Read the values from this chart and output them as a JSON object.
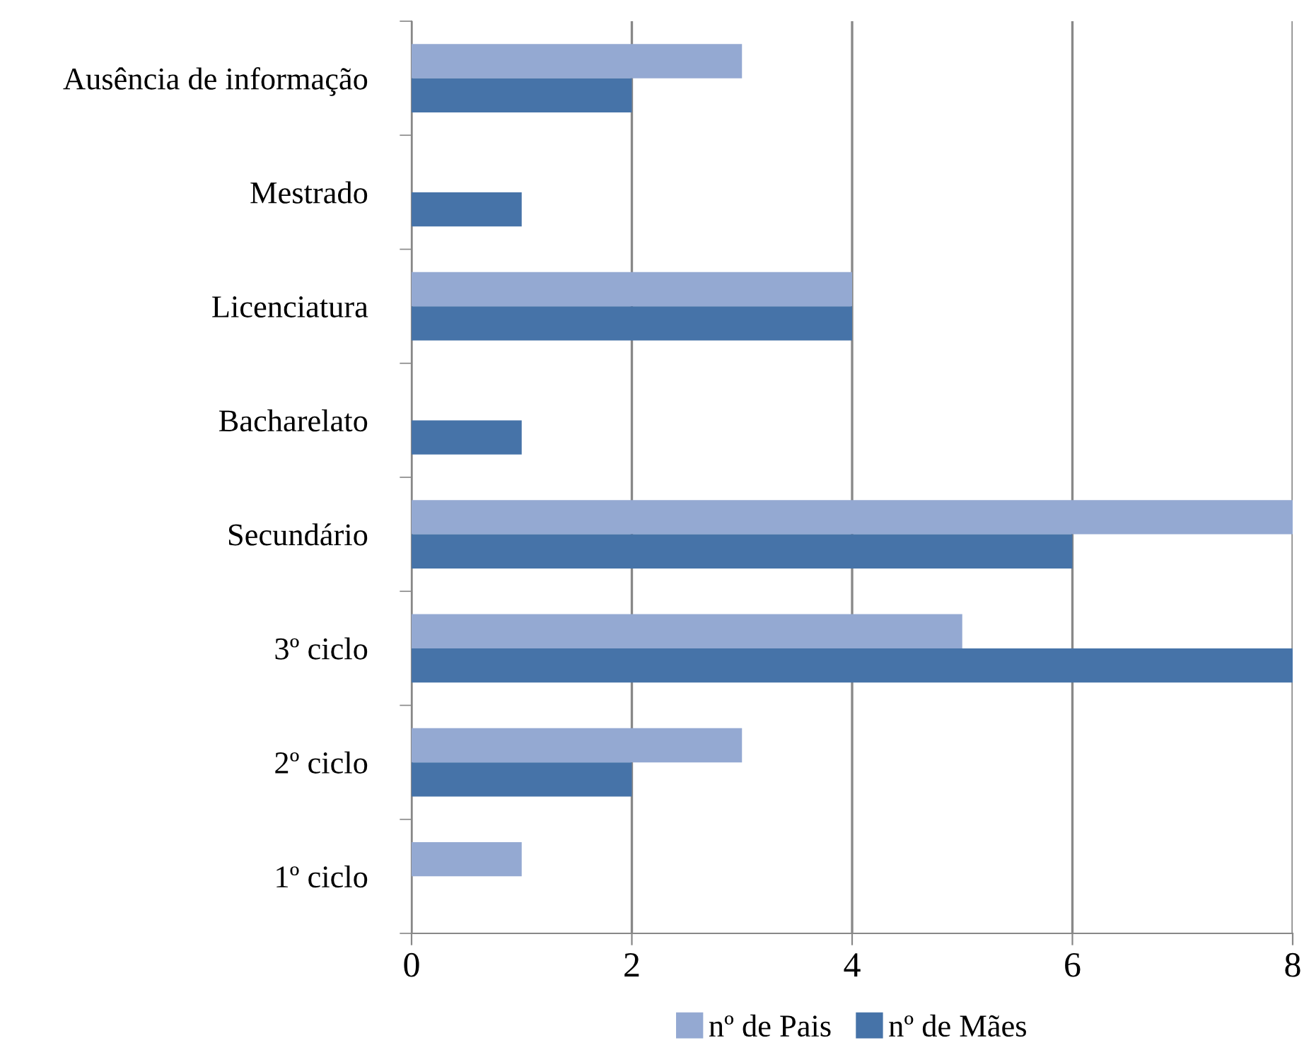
{
  "chart_data": {
    "type": "bar",
    "orientation": "horizontal",
    "categories": [
      "Ausência de informação",
      "Mestrado",
      "Licenciatura",
      "Bacharelato",
      "Secundário",
      "3º ciclo",
      "2º ciclo",
      "1º ciclo"
    ],
    "series": [
      {
        "name": "nº de Pais",
        "color": "#94a9d2",
        "values": [
          3,
          0,
          4,
          0,
          8,
          5,
          3,
          1
        ]
      },
      {
        "name": "nº de Mães",
        "color": "#4673a8",
        "values": [
          2,
          1,
          4,
          1,
          6,
          8,
          2,
          0
        ]
      }
    ],
    "xlim": [
      0,
      8
    ],
    "xticks": [
      0,
      2,
      4,
      6,
      8
    ],
    "grid": "x",
    "legend": "bottom"
  }
}
